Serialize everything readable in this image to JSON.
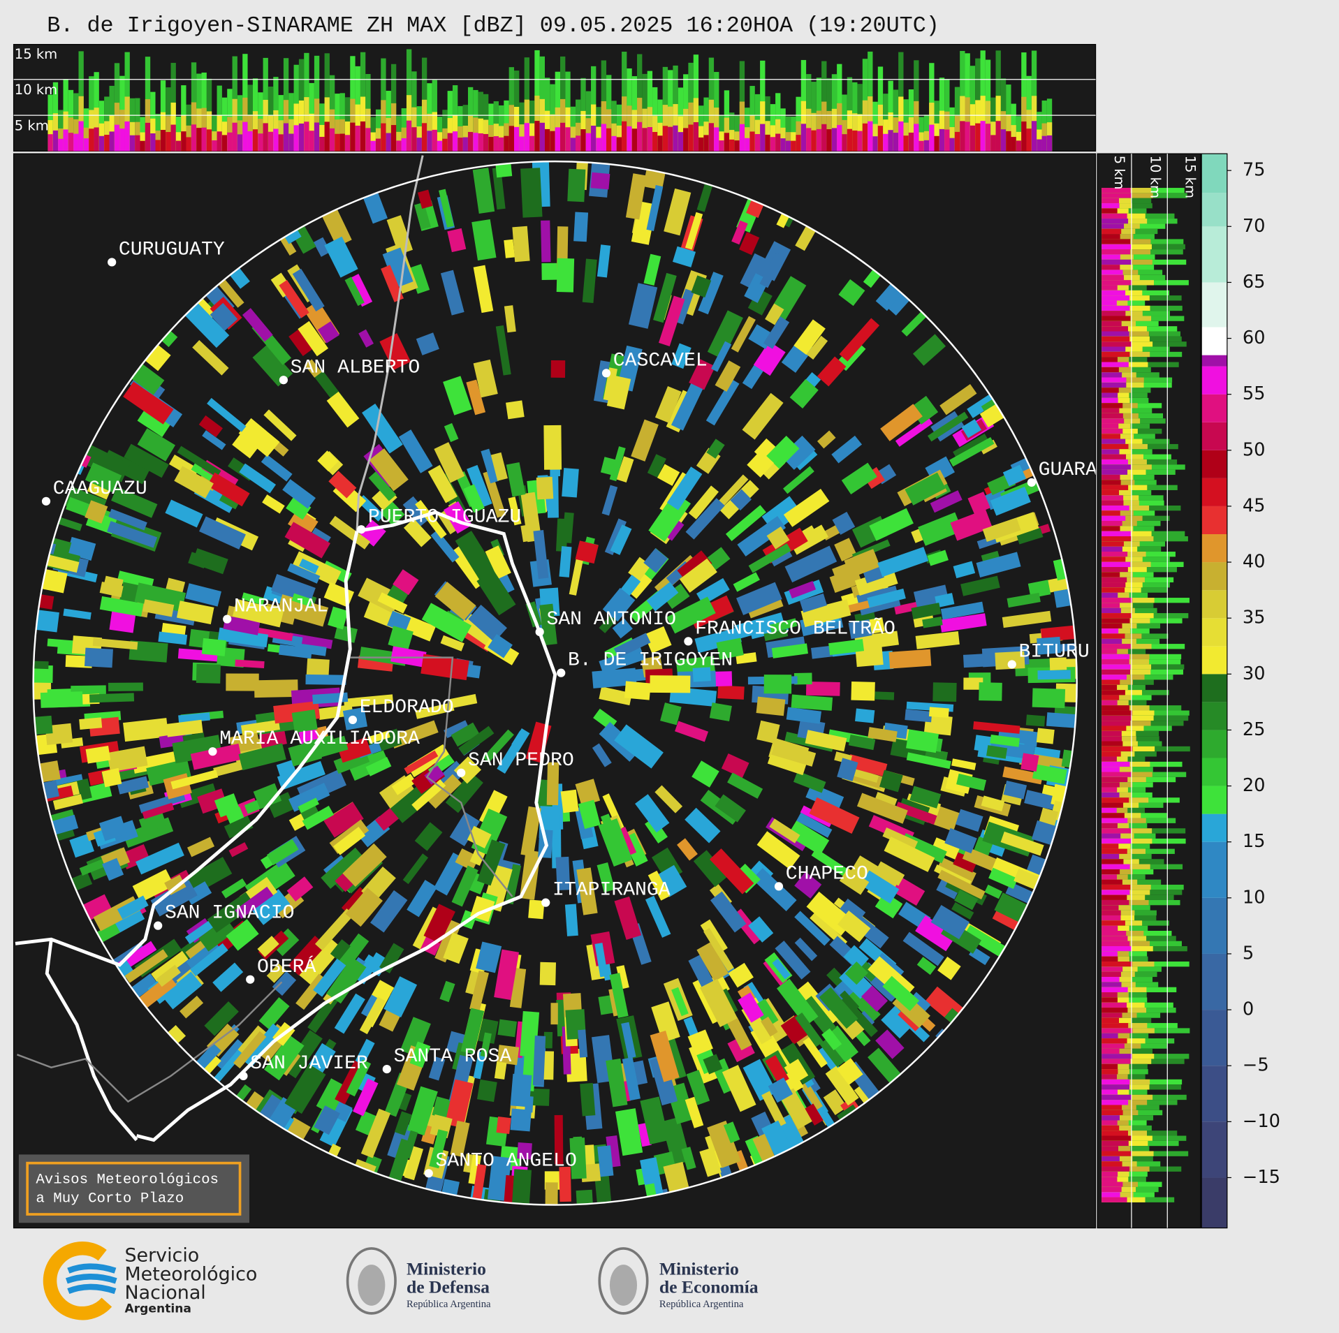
{
  "title": "B. de Irigoyen-SINARAME ZH MAX [dBZ] 09.05.2025 16:20HOA (19:20UTC)",
  "top_panel": {
    "labels": [
      "15 km",
      "10 km",
      "5 km"
    ]
  },
  "side_panel": {
    "labels": [
      "5 km",
      "10 km",
      "15 km"
    ]
  },
  "cities": [
    "CURUGUATY",
    "SAN ALBERTO",
    "CASCAVEL",
    "GUARA",
    "CAAGUAZU",
    "PUERTO IGUAZU",
    "NARANJAL",
    "SAN ANTONIO",
    "FRANCISCO BELTRÃO",
    "BITURU",
    "B. DE IRIGOYEN",
    "ELDORADO",
    "MARIA AUXILIADORA",
    "SAN PEDRO",
    "CHAPECO",
    "ITAPIRANGA",
    "SAN IGNACIO",
    "OBERÁ",
    "SAN JAVIER",
    "SANTA ROSA",
    "SANTO ANGELO"
  ],
  "colorbar": {
    "range": [
      -19.5,
      76.5
    ],
    "ticks": [
      75,
      70,
      65,
      60,
      55,
      50,
      45,
      40,
      35,
      30,
      25,
      20,
      15,
      10,
      5,
      0,
      {
        "value": -5,
        "label": "−5"
      },
      {
        "value": -10,
        "label": "−10"
      },
      {
        "value": -15,
        "label": "−15"
      }
    ],
    "segments": [
      {
        "from": -19.5,
        "color": "#3a3c68"
      },
      {
        "from": -15,
        "color": "#3d4578"
      },
      {
        "from": -10,
        "color": "#3c4e86"
      },
      {
        "from": -5,
        "color": "#3a5a95"
      },
      {
        "from": 0,
        "color": "#3968a4"
      },
      {
        "from": 5,
        "color": "#3477b3"
      },
      {
        "from": 10,
        "color": "#2f88c4"
      },
      {
        "from": 15,
        "color": "#29a6d8"
      },
      {
        "from": 17.5,
        "color": "#3ee23a"
      },
      {
        "from": 20,
        "color": "#34c634"
      },
      {
        "from": 22.5,
        "color": "#2eaa2e"
      },
      {
        "from": 25,
        "color": "#268a26"
      },
      {
        "from": 27.5,
        "color": "#1e6e1e"
      },
      {
        "from": 30,
        "color": "#f2ea30"
      },
      {
        "from": 32.5,
        "color": "#e6de34"
      },
      {
        "from": 35,
        "color": "#d8cc34"
      },
      {
        "from": 37.5,
        "color": "#c8b030"
      },
      {
        "from": 40,
        "color": "#e0962c"
      },
      {
        "from": 42.5,
        "color": "#e83030"
      },
      {
        "from": 45,
        "color": "#d41020"
      },
      {
        "from": 47.5,
        "color": "#b00018"
      },
      {
        "from": 50,
        "color": "#c80850"
      },
      {
        "from": 52.5,
        "color": "#e01080"
      },
      {
        "from": 55,
        "color": "#f010e0"
      },
      {
        "from": 57.5,
        "color": "#a010a8"
      },
      {
        "from": 58.5,
        "color": "#ffffff"
      },
      {
        "from": 61,
        "color": "#e0f5ec"
      },
      {
        "from": 65,
        "color": "#b8ecd8"
      },
      {
        "from": 70,
        "color": "#98e0c8"
      },
      {
        "from": 73,
        "color": "#80d8bc"
      }
    ]
  },
  "notice": {
    "lines": [
      "Avisos Meteorológicos",
      "a Muy Corto Plazo"
    ]
  },
  "logos": {
    "smn": [
      "Servicio",
      "Meteorológico",
      "Nacional",
      "Argentina"
    ],
    "defensa": [
      "Ministerio",
      "de Defensa",
      "República Argentina"
    ],
    "economia": [
      "Ministerio",
      "de Economía",
      "República Argentina"
    ]
  }
}
